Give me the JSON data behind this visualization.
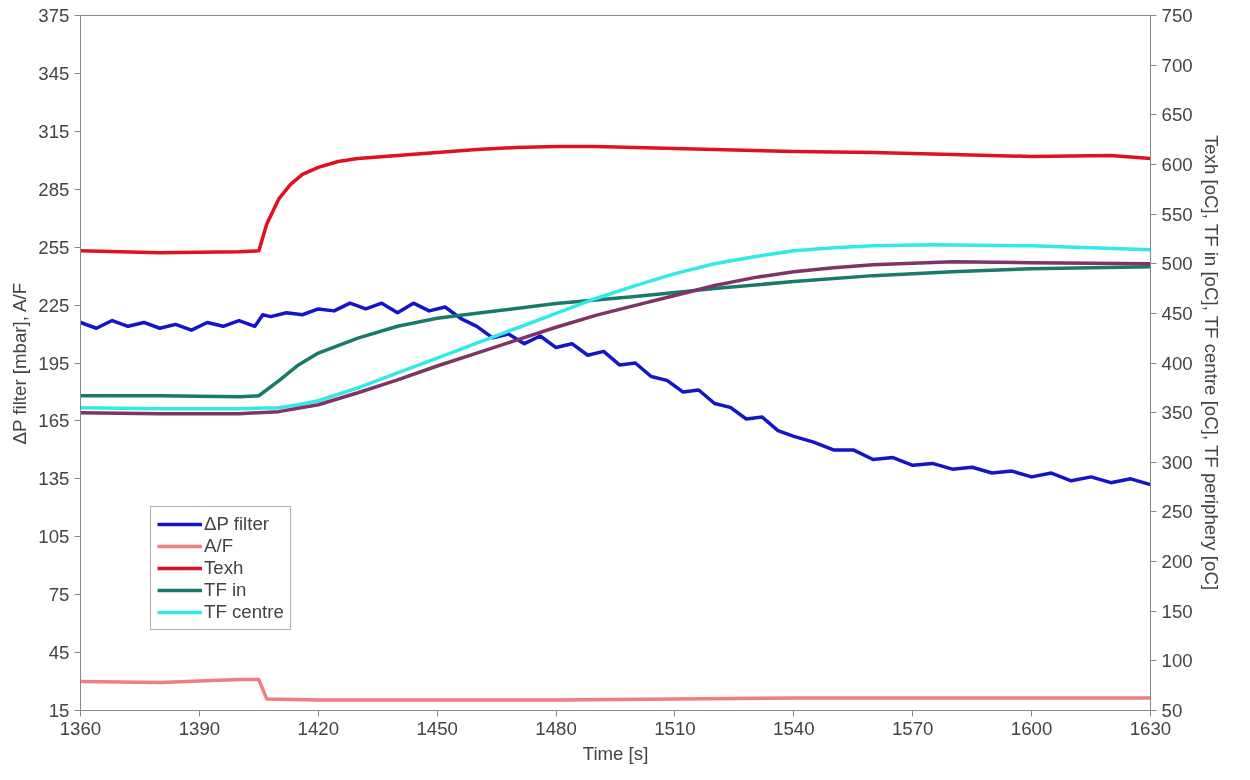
{
  "chart_data": {
    "type": "line",
    "xlabel": "Time [s]",
    "ylabel": "ΔP filter [mbar], A/F",
    "y2label": "Texh [oC], TF in [oC], TF centre [oC], TF periphery [oC]",
    "xlim": [
      1360,
      1630
    ],
    "xticks": [
      1360,
      1390,
      1420,
      1450,
      1480,
      1510,
      1540,
      1570,
      1600,
      1630
    ],
    "ylim": [
      15,
      375
    ],
    "yticks": [
      15,
      45,
      75,
      105,
      135,
      165,
      195,
      225,
      255,
      285,
      315,
      345,
      375
    ],
    "y2lim": [
      50,
      750
    ],
    "y2ticks": [
      50,
      100,
      150,
      200,
      250,
      300,
      350,
      400,
      450,
      500,
      550,
      600,
      650,
      700,
      750
    ],
    "grid": false,
    "legend": "bottom left",
    "line_style": "solid",
    "marker": "none",
    "series": [
      {
        "name": "ΔP filter",
        "color": "#1414c8",
        "x": [
          1360,
          1364,
          1368,
          1372,
          1376,
          1380,
          1384,
          1388,
          1392,
          1396,
          1400,
          1404,
          1406,
          1408,
          1412,
          1416,
          1420,
          1424,
          1428,
          1432,
          1436,
          1440,
          1444,
          1448,
          1452,
          1456,
          1460,
          1464,
          1468,
          1472,
          1476,
          1480,
          1484,
          1488,
          1492,
          1496,
          1500,
          1504,
          1508,
          1512,
          1516,
          1520,
          1524,
          1528,
          1532,
          1536,
          1540,
          1545,
          1550,
          1555,
          1560,
          1565,
          1570,
          1575,
          1580,
          1585,
          1590,
          1595,
          1600,
          1605,
          1610,
          1615,
          1620,
          1625,
          1630
        ],
        "values": [
          216,
          213,
          217,
          214,
          216,
          213,
          215,
          212,
          216,
          214,
          217,
          214,
          220,
          219,
          221,
          220,
          223,
          222,
          226,
          223,
          226,
          221,
          226,
          222,
          224,
          218,
          214,
          208,
          210,
          205,
          209,
          203,
          205,
          199,
          201,
          194,
          195,
          188,
          186,
          180,
          181,
          174,
          172,
          166,
          167,
          160,
          157,
          154,
          150,
          150,
          145,
          146,
          142,
          143,
          140,
          141,
          138,
          139,
          136,
          138,
          134,
          136,
          133,
          135,
          132
        ]
      },
      {
        "name": "A/F",
        "color": "#f07c84",
        "x": [
          1360,
          1380,
          1400,
          1405,
          1407,
          1420,
          1450,
          1480,
          1510,
          1540,
          1570,
          1600,
          1630
        ],
        "values": [
          30,
          29.5,
          31,
          31,
          21,
          20.5,
          20.5,
          20.5,
          21,
          21.5,
          21.5,
          21.5,
          21.5
        ]
      },
      {
        "name": "Texh",
        "color": "#e01020",
        "axis": "y2",
        "x": [
          1360,
          1380,
          1400,
          1405,
          1407,
          1410,
          1413,
          1416,
          1420,
          1425,
          1430,
          1440,
          1450,
          1460,
          1470,
          1480,
          1490,
          1500,
          1520,
          1540,
          1560,
          1580,
          1600,
          1620,
          1630
        ],
        "values": [
          513,
          511,
          512,
          513,
          540,
          565,
          580,
          590,
          597,
          603,
          606,
          609,
          612,
          615,
          617,
          618,
          618,
          617,
          615,
          613,
          612,
          610,
          608,
          609,
          606
        ]
      },
      {
        "name": "TF in",
        "color": "#1a7a6a",
        "axis": "y2",
        "x": [
          1360,
          1380,
          1400,
          1405,
          1410,
          1415,
          1420,
          1430,
          1440,
          1450,
          1460,
          1480,
          1500,
          1520,
          1540,
          1560,
          1580,
          1600,
          1630
        ],
        "values": [
          367,
          367,
          366,
          367,
          382,
          398,
          410,
          425,
          437,
          445,
          450,
          460,
          467,
          475,
          482,
          488,
          492,
          495,
          497
        ]
      },
      {
        "name": "TF centre",
        "color": "#33e8e8",
        "axis": "y2",
        "x": [
          1360,
          1380,
          1400,
          1410,
          1415,
          1420,
          1430,
          1440,
          1450,
          1460,
          1470,
          1480,
          1490,
          1500,
          1510,
          1520,
          1530,
          1540,
          1550,
          1560,
          1575,
          1600,
          1630
        ],
        "values": [
          355,
          354,
          354,
          355,
          358,
          362,
          375,
          390,
          405,
          420,
          435,
          450,
          465,
          478,
          490,
          500,
          507,
          513,
          516,
          518,
          519,
          518,
          514
        ]
      },
      {
        "color": "#7f3366",
        "axis": "y2",
        "x": [
          1360,
          1380,
          1400,
          1410,
          1420,
          1430,
          1440,
          1450,
          1460,
          1470,
          1480,
          1490,
          1500,
          1510,
          1520,
          1530,
          1540,
          1550,
          1560,
          1580,
          1600,
          1630
        ],
        "values": [
          350,
          349,
          349,
          351,
          358,
          370,
          383,
          397,
          410,
          423,
          436,
          448,
          458,
          468,
          478,
          486,
          492,
          496,
          499,
          502,
          501,
          500
        ]
      }
    ]
  }
}
